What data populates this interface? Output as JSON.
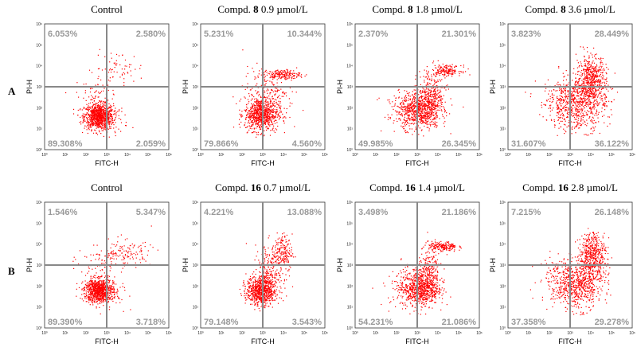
{
  "colors": {
    "dots": "#ff0000",
    "gate": "#888888",
    "quadrant_text": "#999999",
    "frame": "#333333"
  },
  "row_labels": [
    "A",
    "B"
  ],
  "axis_labels": {
    "x": "FITC-H",
    "y": "PI-H"
  },
  "tick_labels": [
    "10⁰",
    "10¹",
    "10²",
    "10³",
    "10⁴",
    "10⁵",
    "10⁶"
  ],
  "chart_data": [
    {
      "type": "scatter",
      "row": "A",
      "title_prefix": "Control",
      "title_bold": "",
      "title_suffix": "",
      "xlabel": "FITC-H",
      "ylabel": "PI-H",
      "xlim": [
        0,
        6
      ],
      "ylim": [
        0,
        6
      ],
      "xscale": "log",
      "yscale": "log",
      "gate": [
        3,
        3
      ],
      "quadrants": {
        "upper_left": "6.053%",
        "upper_right": "2.580%",
        "lower_left": "89.308%",
        "lower_right": "2.059%"
      }
    },
    {
      "type": "scatter",
      "row": "A",
      "title_prefix": "Compd. ",
      "title_bold": "8",
      "title_suffix": " 0.9 µmol/L",
      "xlabel": "FITC-H",
      "ylabel": "PI-H",
      "xlim": [
        0,
        6
      ],
      "ylim": [
        0,
        6
      ],
      "xscale": "log",
      "yscale": "log",
      "gate": [
        3,
        3
      ],
      "quadrants": {
        "upper_left": "5.231%",
        "upper_right": "10.344%",
        "lower_left": "79.866%",
        "lower_right": "4.560%"
      }
    },
    {
      "type": "scatter",
      "row": "A",
      "title_prefix": "Compd. ",
      "title_bold": "8",
      "title_suffix": " 1.8 µmol/L",
      "xlabel": "FITC-H",
      "ylabel": "PI-H",
      "xlim": [
        0,
        6
      ],
      "ylim": [
        0,
        6
      ],
      "xscale": "log",
      "yscale": "log",
      "gate": [
        3,
        3
      ],
      "quadrants": {
        "upper_left": "2.370%",
        "upper_right": "21.301%",
        "lower_left": "49.985%",
        "lower_right": "26.345%"
      }
    },
    {
      "type": "scatter",
      "row": "A",
      "title_prefix": "Compd. ",
      "title_bold": "8",
      "title_suffix": " 3.6 µmol/L",
      "xlabel": "FITC-H",
      "ylabel": "PI-H",
      "xlim": [
        0,
        6
      ],
      "ylim": [
        0,
        6
      ],
      "xscale": "log",
      "yscale": "log",
      "gate": [
        3,
        3
      ],
      "quadrants": {
        "upper_left": "3.823%",
        "upper_right": "28.449%",
        "lower_left": "31.607%",
        "lower_right": "36.122%"
      }
    },
    {
      "type": "scatter",
      "row": "B",
      "title_prefix": "Control",
      "title_bold": "",
      "title_suffix": "",
      "xlabel": "FITC-H",
      "ylabel": "PI-H",
      "xlim": [
        0,
        6
      ],
      "ylim": [
        0,
        6
      ],
      "xscale": "log",
      "yscale": "log",
      "gate": [
        3,
        3
      ],
      "quadrants": {
        "upper_left": "1.546%",
        "upper_right": "5.347%",
        "lower_left": "89.390%",
        "lower_right": "3.718%"
      }
    },
    {
      "type": "scatter",
      "row": "B",
      "title_prefix": "Compd. ",
      "title_bold": "16",
      "title_suffix": " 0.7 µmol/L",
      "xlabel": "FITC-H",
      "ylabel": "PI-H",
      "xlim": [
        0,
        6
      ],
      "ylim": [
        0,
        6
      ],
      "xscale": "log",
      "yscale": "log",
      "gate": [
        3,
        3
      ],
      "quadrants": {
        "upper_left": "4.221%",
        "upper_right": "13.088%",
        "lower_left": "79.148%",
        "lower_right": "3.543%"
      }
    },
    {
      "type": "scatter",
      "row": "B",
      "title_prefix": "Compd. ",
      "title_bold": "16",
      "title_suffix": " 1.4 µmol/L",
      "xlabel": "FITC-H",
      "ylabel": "PI-H",
      "xlim": [
        0,
        6
      ],
      "ylim": [
        0,
        6
      ],
      "xscale": "log",
      "yscale": "log",
      "gate": [
        3,
        3
      ],
      "quadrants": {
        "upper_left": "3.498%",
        "upper_right": "21.186%",
        "lower_left": "54.231%",
        "lower_right": "21.086%"
      }
    },
    {
      "type": "scatter",
      "row": "B",
      "title_prefix": "Compd. ",
      "title_bold": "16",
      "title_suffix": " 2.8 µmol/L",
      "xlabel": "FITC-H",
      "ylabel": "PI-H",
      "xlim": [
        0,
        6
      ],
      "ylim": [
        0,
        6
      ],
      "xscale": "log",
      "yscale": "log",
      "gate": [
        3,
        3
      ],
      "quadrants": {
        "upper_left": "7.215%",
        "upper_right": "26.148%",
        "lower_left": "37.358%",
        "lower_right": "29.278%"
      }
    }
  ]
}
